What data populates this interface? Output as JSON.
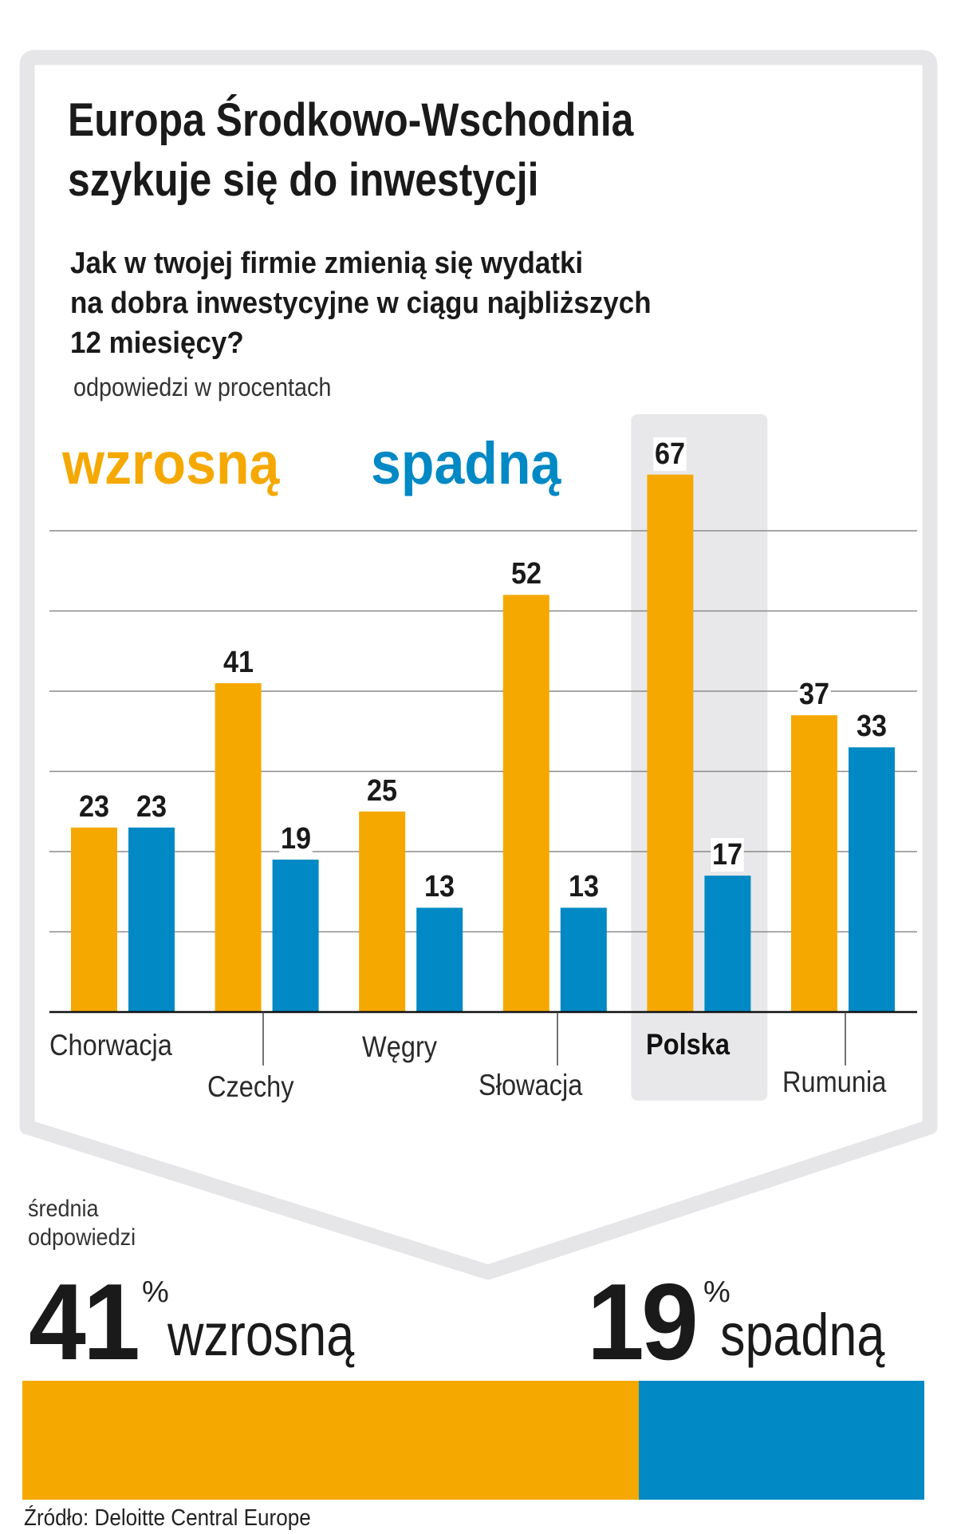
{
  "title": [
    "Europa Środkowo-Wschodnia",
    "szykuje się do inwestycji"
  ],
  "question": [
    "Jak w twojej firmie zmienią się wydatki",
    "na dobra inwestycyjne w ciągu najbliższych",
    "12 miesięcy?"
  ],
  "unit": "odpowiedzi w procentach",
  "colors": {
    "increase": "#f5a800",
    "decrease": "#0089c4",
    "highlight": "#e8e8ea",
    "frame": "#e6e6e8"
  },
  "chart_data": {
    "type": "bar",
    "categories": [
      "Chorwacja",
      "Czechy",
      "Węgry",
      "Słowacja",
      "Polska",
      "Rumunia"
    ],
    "highlighted_category": "Polska",
    "series": [
      {
        "name": "wzrosną",
        "color": "#f5a800",
        "values": [
          23,
          41,
          25,
          52,
          67,
          37
        ]
      },
      {
        "name": "spadną",
        "color": "#0089c4",
        "values": [
          23,
          19,
          13,
          13,
          17,
          33
        ]
      }
    ],
    "ylim": [
      0,
      70
    ],
    "grid": true,
    "data_labels": true,
    "legend_placement": "top-left"
  },
  "summary": {
    "label": [
      "średnia",
      "odpowiedzi"
    ],
    "increase": {
      "value": "41",
      "unit": "%",
      "label": "wzrosną",
      "share": 41
    },
    "decrease": {
      "value": "19",
      "unit": "%",
      "label": "spadną",
      "share": 19
    }
  },
  "source": "Źródło: Deloitte Central Europe"
}
